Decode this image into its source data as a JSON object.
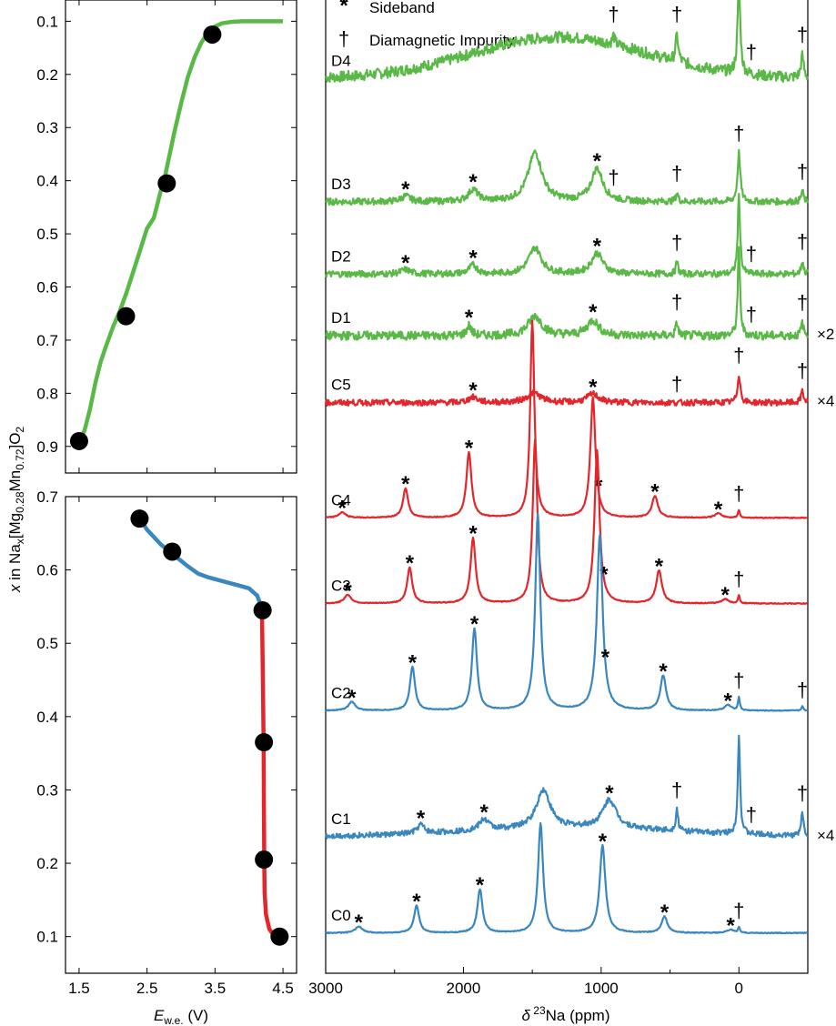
{
  "chart_data": [
    {
      "type": "line",
      "panel": "top-left",
      "ylabel": "x in Na_x[Mg_0.28Mn_0.72]O_2",
      "xlim": [
        1.3,
        4.7
      ],
      "ylim": [
        0.06,
        0.95
      ],
      "xticks": [
        1.5,
        2.5,
        3.5,
        4.5
      ],
      "yticks": [
        "0.1",
        "0.2",
        "0.3",
        "0.4",
        "0.5",
        "0.6",
        "0.7",
        "0.8",
        "0.9"
      ],
      "curve_color": "#5ab946",
      "curve": {
        "x": [
          1.5,
          1.58,
          1.66,
          1.74,
          1.82,
          1.9,
          2.0,
          2.1,
          2.2,
          2.3,
          2.4,
          2.5,
          2.55,
          2.6,
          2.65,
          2.7,
          2.75,
          2.8,
          2.9,
          3.0,
          3.1,
          3.2,
          3.3,
          3.4,
          3.5,
          3.6,
          3.75,
          3.9,
          4.1,
          4.3,
          4.5
        ],
        "y": [
          0.89,
          0.87,
          0.83,
          0.78,
          0.74,
          0.71,
          0.675,
          0.645,
          0.61,
          0.57,
          0.53,
          0.49,
          0.48,
          0.47,
          0.445,
          0.42,
          0.4,
          0.37,
          0.31,
          0.255,
          0.205,
          0.168,
          0.14,
          0.12,
          0.11,
          0.104,
          0.101,
          0.1,
          0.1,
          0.1,
          0.1
        ]
      },
      "points": [
        {
          "x": 1.5,
          "y": 0.89
        },
        {
          "x": 2.19,
          "y": 0.655
        },
        {
          "x": 2.79,
          "y": 0.405
        },
        {
          "x": 3.46,
          "y": 0.125
        }
      ]
    },
    {
      "type": "line",
      "panel": "bottom-left",
      "xlabel": "E_w.e. (V)",
      "xlim": [
        1.3,
        4.7
      ],
      "ylim": [
        0.7,
        0.05
      ],
      "xticks": [
        1.5,
        2.5,
        3.5,
        4.5
      ],
      "yticks": [
        "0.1",
        "0.2",
        "0.3",
        "0.4",
        "0.5",
        "0.6",
        "0.7"
      ],
      "blue_color": "#3a87c0",
      "red_color": "#e3262b",
      "blue_curve": {
        "x": [
          2.39,
          2.5,
          2.7,
          2.9,
          3.1,
          3.25,
          3.4,
          3.6,
          3.8,
          4.0,
          4.12,
          4.19
        ],
        "y": [
          0.67,
          0.655,
          0.635,
          0.62,
          0.605,
          0.595,
          0.59,
          0.585,
          0.58,
          0.575,
          0.565,
          0.548
        ]
      },
      "red_curve": {
        "x": [
          4.19,
          4.205,
          4.215,
          4.22,
          4.225,
          4.23,
          4.25,
          4.3,
          4.38,
          4.47
        ],
        "y": [
          0.548,
          0.45,
          0.36,
          0.28,
          0.2,
          0.16,
          0.13,
          0.11,
          0.1,
          0.1
        ]
      },
      "points": [
        {
          "x": 2.39,
          "y": 0.67
        },
        {
          "x": 2.87,
          "y": 0.625
        },
        {
          "x": 4.2,
          "y": 0.545
        },
        {
          "x": 4.22,
          "y": 0.365
        },
        {
          "x": 4.22,
          "y": 0.205
        },
        {
          "x": 4.45,
          "y": 0.1
        }
      ]
    },
    {
      "type": "line",
      "panel": "right",
      "xlabel": "δ 23Na (ppm)",
      "xlim": [
        3000,
        -500
      ],
      "xticks": [
        "3000",
        "2000",
        "1000",
        "0"
      ],
      "legend": [
        {
          "symbol": "*",
          "label": "Sideband"
        },
        {
          "symbol": "†",
          "label": "Diamagnetic Impurity"
        }
      ],
      "series": [
        {
          "name": "D4",
          "color": "#5ab946",
          "baseline_y": 0.85,
          "noise": 1.0,
          "broad": {
            "center": 1300,
            "width": 900,
            "height": 3.8
          },
          "peaks": [
            [
              0,
              8.0,
              12
            ],
            [
              450,
              2.4,
              12
            ],
            [
              910,
              0.8,
              10
            ],
            [
              -460,
              2.0,
              12
            ]
          ],
          "stars": [],
          "daggers": [
            910,
            450,
            -90,
            -460
          ]
        },
        {
          "name": "D3",
          "color": "#5ab946",
          "baseline_y": 0.62,
          "noise": 0.6,
          "broad": null,
          "peaks": [
            [
              1480,
              4.5,
              60
            ],
            [
              1030,
              3.0,
              50
            ],
            [
              1930,
              1.1,
              40
            ],
            [
              2420,
              0.5,
              40
            ],
            [
              0,
              4.5,
              12
            ],
            [
              450,
              0.8,
              10
            ],
            [
              -460,
              1.0,
              10
            ]
          ],
          "stars": [
            2420,
            1930,
            1030
          ],
          "daggers": [
            910,
            450,
            0,
            -460
          ]
        },
        {
          "name": "D2",
          "color": "#5ab946",
          "baseline_y": 0.485,
          "noise": 0.6,
          "broad": null,
          "peaks": [
            [
              1480,
              2.4,
              55
            ],
            [
              1030,
              1.9,
              50
            ],
            [
              1930,
              0.8,
              35
            ],
            [
              2420,
              0.4,
              40
            ],
            [
              0,
              7.2,
              10
            ],
            [
              450,
              1.1,
              10
            ],
            [
              -460,
              1.2,
              10
            ]
          ],
          "stars": [
            2420,
            1930,
            1030
          ],
          "daggers": [
            450,
            -90,
            -460
          ]
        },
        {
          "name": "D1",
          "color": "#5ab946",
          "baseline_y": 0.37,
          "noise": 0.8,
          "broad": null,
          "peaks": [
            [
              1480,
              1.8,
              60
            ],
            [
              1060,
              1.4,
              50
            ],
            [
              1960,
              0.9,
              20
            ],
            [
              0,
              7.8,
              10
            ],
            [
              450,
              1.2,
              10
            ],
            [
              -460,
              1.2,
              10
            ]
          ],
          "stars": [
            1960,
            1060
          ],
          "daggers": [
            450,
            -90,
            -460
          ],
          "scale": "×2"
        },
        {
          "name": "C5",
          "color": "#e3262b",
          "baseline_y": 0.245,
          "noise": 0.55,
          "broad": null,
          "peaks": [
            [
              1490,
              0.9,
              60
            ],
            [
              1060,
              0.8,
              50
            ],
            [
              1930,
              0.5,
              40
            ],
            [
              0,
              2.6,
              12
            ],
            [
              -460,
              1.2,
              10
            ]
          ],
          "stars": [
            1930,
            1060
          ],
          "daggers": [
            450,
            0,
            -460
          ],
          "scale": "×4"
        },
        {
          "name": "C4",
          "color": "#e3262b",
          "baseline_y": 0.03,
          "noise": 0.08,
          "broad": null,
          "peaks": [
            [
              1500,
              18.0,
              18
            ],
            [
              1060,
              11.0,
              22
            ],
            [
              1960,
              6.0,
              22
            ],
            [
              2420,
              2.7,
              22
            ],
            [
              610,
              2.0,
              25
            ],
            [
              2880,
              0.5,
              30
            ],
            [
              150,
              0.4,
              30
            ],
            [
              0,
              0.7,
              8
            ]
          ],
          "stars": [
            2880,
            2420,
            1960,
            1020,
            610,
            150
          ],
          "daggers": [
            0
          ]
        },
        {
          "name": "C3",
          "color": "#e3262b",
          "baseline_y": -0.13,
          "noise": 0.08,
          "broad": null,
          "peaks": [
            [
              1480,
              15.0,
              20
            ],
            [
              1030,
              14.0,
              22
            ],
            [
              1930,
              6.0,
              22
            ],
            [
              2390,
              3.3,
              22
            ],
            [
              580,
              3.0,
              25
            ],
            [
              2840,
              0.8,
              30
            ],
            [
              100,
              0.4,
              30
            ],
            [
              0,
              0.7,
              8
            ]
          ],
          "stars": [
            2840,
            2390,
            1930,
            980,
            580,
            100
          ],
          "daggers": [
            0
          ]
        },
        {
          "name": "C2",
          "color": "#3a87c0",
          "baseline_y": -0.33,
          "noise": 0.08,
          "broad": null,
          "peaks": [
            [
              1460,
              18.0,
              22
            ],
            [
              1010,
              16.0,
              25
            ],
            [
              1920,
              7.5,
              22
            ],
            [
              2370,
              4.0,
              22
            ],
            [
              550,
              3.2,
              25
            ],
            [
              2810,
              0.8,
              30
            ],
            [
              80,
              0.5,
              30
            ],
            [
              0,
              1.2,
              8
            ],
            [
              -460,
              0.4,
              8
            ]
          ],
          "stars": [
            2810,
            2370,
            1920,
            970,
            550,
            80
          ],
          "daggers": [
            0,
            -460
          ]
        },
        {
          "name": "C1",
          "color": "#3a87c0",
          "baseline_y": -0.565,
          "noise": 0.5,
          "broad": {
            "center": 1200,
            "width": 1100,
            "height": 0.8
          },
          "peaks": [
            [
              1420,
              3.5,
              60
            ],
            [
              940,
              2.6,
              60
            ],
            [
              1850,
              1.0,
              40
            ],
            [
              2310,
              0.8,
              30
            ],
            [
              0,
              9.0,
              10
            ],
            [
              450,
              2.0,
              10
            ],
            [
              -460,
              2.2,
              10
            ]
          ],
          "stars": [
            2310,
            1850,
            940
          ],
          "daggers": [
            450,
            -90,
            -460
          ],
          "scale": "×4"
        },
        {
          "name": "C0",
          "color": "#3a87c0",
          "baseline_y": -0.745,
          "noise": 0.08,
          "broad": null,
          "peaks": [
            [
              1440,
              10.0,
              22
            ],
            [
              990,
              8.0,
              25
            ],
            [
              1880,
              4.0,
              22
            ],
            [
              2340,
              2.5,
              22
            ],
            [
              540,
              1.5,
              25
            ],
            [
              2760,
              0.6,
              30
            ],
            [
              60,
              0.3,
              30
            ],
            [
              0,
              0.5,
              8
            ]
          ],
          "stars": [
            2760,
            2340,
            1880,
            990,
            540,
            60
          ],
          "daggers": [
            0
          ]
        }
      ]
    }
  ]
}
